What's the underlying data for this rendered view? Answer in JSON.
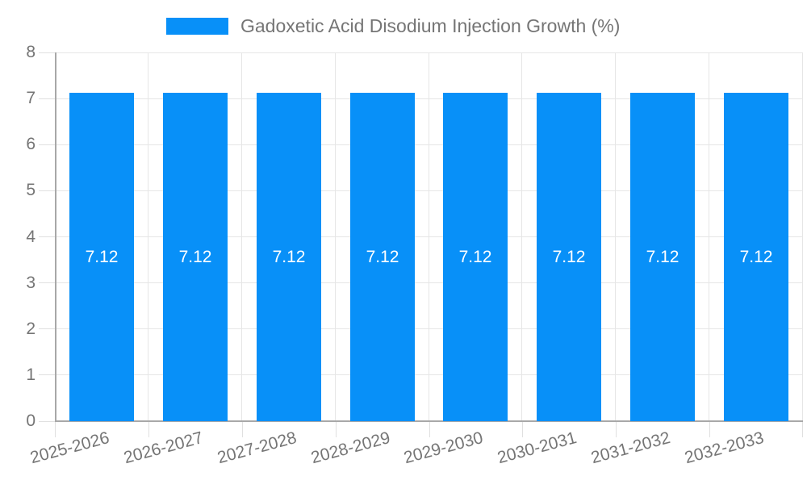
{
  "legend": {
    "label": "Gadoxetic Acid Disodium Injection Growth (%)"
  },
  "chart_data": {
    "type": "bar",
    "title": "",
    "categories": [
      "2025-2026",
      "2026-2027",
      "2027-2028",
      "2028-2029",
      "2029-2030",
      "2030-2031",
      "2031-2032",
      "2032-2033"
    ],
    "series": [
      {
        "name": "Gadoxetic Acid Disodium Injection Growth (%)",
        "values": [
          7.12,
          7.12,
          7.12,
          7.12,
          7.12,
          7.12,
          7.12,
          7.12
        ],
        "color": "#0890f8"
      }
    ],
    "value_labels": [
      "7.12",
      "7.12",
      "7.12",
      "7.12",
      "7.12",
      "7.12",
      "7.12",
      "7.12"
    ],
    "xlabel": "",
    "ylabel": "",
    "ylim": [
      0,
      8
    ],
    "yticks": [
      0,
      1,
      2,
      3,
      4,
      5,
      6,
      7,
      8
    ],
    "grid": true,
    "legend_position": "top",
    "x_label_rotation_deg": -15,
    "colors": {
      "bar": "#0890f8",
      "bar_label": "#ffffff",
      "axis_text": "#757575",
      "gridline": "#e6e6e6",
      "axis_line": "#a8a8a8",
      "background": "#ffffff"
    }
  }
}
